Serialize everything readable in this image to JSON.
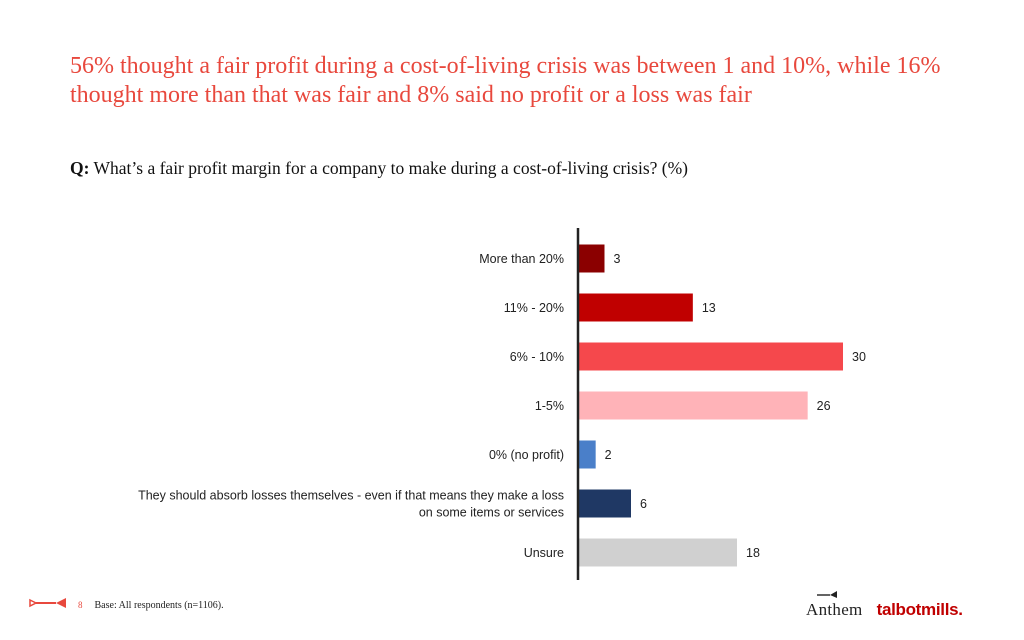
{
  "slide": {
    "headline": "56% thought a fair profit during a cost-of-living crisis was between 1 and 10%, while 16% thought more than that was fair and 8% said no profit or a loss was fair",
    "question_prefix": "Q:",
    "question_text": "What’s a fair profit margin for a company to make during a cost-of-living crisis? (%)",
    "page_number": "8",
    "base_note": "Base: All respondents (n=1106).",
    "logos": {
      "anthem": "Anthem",
      "talbot_mills": "talbotmills."
    },
    "colors": {
      "accent": "#e8483d",
      "brand_red": "#c00000"
    },
    "icons": {
      "footer_icon": "horn-icon",
      "anthem_mark": "horn-icon"
    }
  },
  "chart_data": {
    "type": "bar",
    "orientation": "horizontal",
    "categories": [
      "More than 20%",
      "11% - 20%",
      "6% - 10%",
      "1-5%",
      "0% (no profit)",
      "They should absorb losses themselves - even if that means they make a loss on some items or services",
      "Unsure"
    ],
    "category_lines": [
      [
        "More than 20%"
      ],
      [
        "11% - 20%"
      ],
      [
        "6% - 10%"
      ],
      [
        "1-5%"
      ],
      [
        "0% (no profit)"
      ],
      [
        "They should absorb losses themselves - even if that means they make a loss",
        "on some items or services"
      ],
      [
        "Unsure"
      ]
    ],
    "values": [
      3,
      13,
      30,
      26,
      2,
      6,
      18
    ],
    "colors": [
      "#8b0000",
      "#c00000",
      "#f5484c",
      "#ffb3b8",
      "#4a7fc9",
      "#1f3864",
      "#d0d0d0"
    ],
    "data_labels": [
      "3",
      "13",
      "30",
      "26",
      "2",
      "6",
      "18"
    ],
    "xlim": [
      0,
      30
    ],
    "grid": false,
    "legend": "none"
  }
}
